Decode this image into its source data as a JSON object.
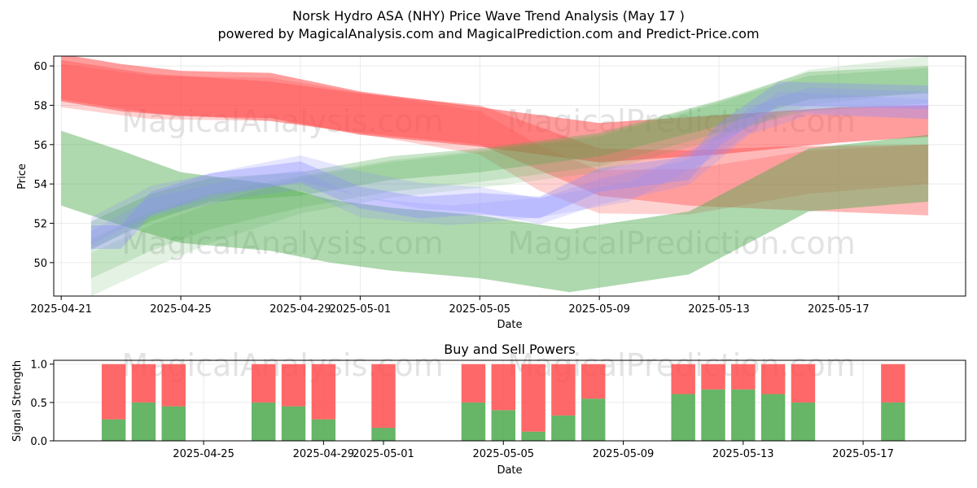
{
  "header": {
    "title": "Norsk Hydro ASA (NHY) Price Wave Trend Analysis (May 17 )",
    "subtitle": "powered by MagicalAnalysis.com and MagicalPrediction.com and Predict-Price.com"
  },
  "watermarks": [
    "MagicalAnalysis.com",
    "MagicalPrediction.com"
  ],
  "colors": {
    "red": "#ff4d4d",
    "green": "#4ca84c",
    "blue": "#8c8cff",
    "grid": "#e6e6e6"
  },
  "chart_data": [
    {
      "type": "area",
      "title": "",
      "xlabel": "Date",
      "ylabel": "Price",
      "x_start": "2025-04-21",
      "x_end": "2025-05-20",
      "xlim": [
        "2025-04-20 18:00",
        "2025-05-21 06:00"
      ],
      "ylim": [
        48.3,
        60.5
      ],
      "xticks": [
        "2025-04-21",
        "2025-04-25",
        "2025-04-29",
        "2025-05-01",
        "2025-05-05",
        "2025-05-09",
        "2025-05-13",
        "2025-05-17"
      ],
      "yticks": [
        50,
        52,
        54,
        56,
        58,
        60
      ],
      "grid": true,
      "bands": [
        {
          "color": "red",
          "x": [
            "2025-04-21",
            "2025-04-23",
            "2025-04-25",
            "2025-04-28",
            "2025-05-01",
            "2025-05-05",
            "2025-05-09",
            "2025-05-13",
            "2025-05-17",
            "2025-05-20"
          ],
          "center": [
            59.4,
            58.9,
            58.6,
            58.5,
            57.6,
            56.9,
            56.1,
            56.5,
            57.0,
            57.2
          ],
          "width": [
            2.4,
            2.4,
            2.3,
            2.3,
            2.2,
            2.0,
            2.0,
            2.0,
            1.8,
            1.6
          ],
          "opacity": 0.55
        },
        {
          "color": "red",
          "x": [
            "2025-04-21",
            "2025-04-24",
            "2025-04-28",
            "2025-05-01",
            "2025-05-05",
            "2025-05-07",
            "2025-05-09",
            "2025-05-12",
            "2025-05-15",
            "2025-05-20"
          ],
          "center": [
            59.3,
            58.6,
            58.2,
            57.6,
            57.0,
            55.8,
            54.6,
            54.3,
            54.3,
            54.2
          ],
          "width": [
            2.0,
            2.0,
            2.0,
            2.0,
            2.0,
            2.2,
            2.4,
            2.8,
            3.2,
            3.6
          ],
          "opacity": 0.4
        },
        {
          "color": "red",
          "x": [
            "2025-04-21",
            "2025-04-24",
            "2025-04-28",
            "2025-05-01",
            "2025-05-05",
            "2025-05-07",
            "2025-05-09",
            "2025-05-12",
            "2025-05-16",
            "2025-05-20"
          ],
          "center": [
            59.0,
            58.4,
            58.3,
            57.6,
            56.6,
            54.8,
            53.6,
            53.6,
            54.6,
            55.0
          ],
          "width": [
            2.2,
            2.2,
            2.2,
            2.1,
            2.2,
            2.3,
            2.2,
            2.3,
            2.2,
            2.0
          ],
          "opacity": 0.25
        },
        {
          "color": "green",
          "x": [
            "2025-04-21",
            "2025-04-23",
            "2025-04-25",
            "2025-04-28",
            "2025-04-30",
            "2025-05-02",
            "2025-05-05",
            "2025-05-08",
            "2025-05-12",
            "2025-05-14",
            "2025-05-16",
            "2025-05-20"
          ],
          "center": [
            54.8,
            53.8,
            52.8,
            52.3,
            51.6,
            51.2,
            50.8,
            50.1,
            51.0,
            52.6,
            54.2,
            54.8
          ],
          "width": [
            3.8,
            3.8,
            3.6,
            3.4,
            3.2,
            3.2,
            3.2,
            3.2,
            3.2,
            3.2,
            3.2,
            3.4
          ],
          "opacity": 0.45
        },
        {
          "color": "green",
          "x": [
            "2025-04-22",
            "2025-04-24",
            "2025-04-26",
            "2025-04-29",
            "2025-05-02",
            "2025-05-05",
            "2025-05-09",
            "2025-05-13",
            "2025-05-16",
            "2025-05-20"
          ],
          "center": [
            51.4,
            52.8,
            53.7,
            54.0,
            54.8,
            55.2,
            56.0,
            57.6,
            59.0,
            59.3
          ],
          "width": [
            1.4,
            1.4,
            1.2,
            1.2,
            1.2,
            1.2,
            1.2,
            1.3,
            1.4,
            1.4
          ],
          "opacity": 0.3
        },
        {
          "color": "green",
          "x": [
            "2025-04-22",
            "2025-04-24",
            "2025-04-26",
            "2025-04-29",
            "2025-05-02",
            "2025-05-05",
            "2025-05-09",
            "2025-05-13",
            "2025-05-16",
            "2025-05-20"
          ],
          "center": [
            50.2,
            51.6,
            52.6,
            53.6,
            54.4,
            54.9,
            55.7,
            57.4,
            58.6,
            59.0
          ],
          "width": [
            2.0,
            2.0,
            1.8,
            1.6,
            1.6,
            1.6,
            1.6,
            1.6,
            1.8,
            1.8
          ],
          "opacity": 0.2
        },
        {
          "color": "green",
          "x": [
            "2025-04-22",
            "2025-04-24",
            "2025-04-26",
            "2025-04-29",
            "2025-05-02",
            "2025-05-05",
            "2025-05-09",
            "2025-05-13",
            "2025-05-16",
            "2025-05-20"
          ],
          "center": [
            49.4,
            50.8,
            52.0,
            53.4,
            54.2,
            54.7,
            55.5,
            57.2,
            58.9,
            59.6
          ],
          "width": [
            2.2,
            2.2,
            2.0,
            1.8,
            1.8,
            1.8,
            1.8,
            1.8,
            1.8,
            1.8
          ],
          "opacity": 0.15
        },
        {
          "color": "blue",
          "x": [
            "2025-04-22",
            "2025-04-23",
            "2025-04-24",
            "2025-04-26",
            "2025-04-29",
            "2025-05-01",
            "2025-05-03",
            "2025-05-05",
            "2025-05-07",
            "2025-05-09",
            "2025-05-12",
            "2025-05-13",
            "2025-05-15",
            "2025-05-20"
          ],
          "center": [
            51.3,
            51.3,
            53.0,
            54.0,
            54.6,
            53.3,
            52.8,
            53.0,
            52.8,
            54.2,
            54.8,
            56.5,
            58.6,
            58.4
          ],
          "width": [
            1.2,
            1.2,
            1.2,
            1.1,
            1.1,
            1.1,
            1.1,
            1.1,
            1.1,
            1.2,
            1.2,
            1.2,
            1.2,
            1.2
          ],
          "opacity": 0.35
        },
        {
          "color": "blue",
          "x": [
            "2025-04-22",
            "2025-04-24",
            "2025-04-27",
            "2025-04-29",
            "2025-05-01",
            "2025-05-03",
            "2025-05-05",
            "2025-05-07",
            "2025-05-09",
            "2025-05-12",
            "2025-05-14",
            "2025-05-16",
            "2025-05-20"
          ],
          "center": [
            51.6,
            53.2,
            54.2,
            54.8,
            54.0,
            53.4,
            53.2,
            52.6,
            53.6,
            54.6,
            57.2,
            58.2,
            58.0
          ],
          "width": [
            1.4,
            1.4,
            1.3,
            1.3,
            1.3,
            1.3,
            1.3,
            1.3,
            1.3,
            1.3,
            1.4,
            1.4,
            1.4
          ],
          "opacity": 0.22
        },
        {
          "color": "blue",
          "x": [
            "2025-04-22",
            "2025-04-24",
            "2025-04-27",
            "2025-04-29",
            "2025-05-01",
            "2025-05-04",
            "2025-05-07",
            "2025-05-10",
            "2025-05-13",
            "2025-05-15",
            "2025-05-20"
          ],
          "center": [
            51.1,
            52.8,
            53.8,
            54.2,
            52.8,
            52.4,
            52.8,
            53.6,
            56.0,
            58.2,
            57.8
          ],
          "width": [
            1.0,
            1.0,
            1.0,
            1.0,
            1.0,
            1.0,
            1.0,
            1.0,
            1.0,
            1.0,
            1.0
          ],
          "opacity": 0.2
        }
      ]
    },
    {
      "type": "bar",
      "title": "Buy and Sell Powers",
      "xlabel": "Date",
      "ylabel": "Signal Strength",
      "ylim": [
        0,
        1.05
      ],
      "yticks": [
        "0.0",
        "0.5",
        "1.0"
      ],
      "xticks": [
        "2025-04-25",
        "2025-04-29",
        "2025-05-01",
        "2025-05-05",
        "2025-05-09",
        "2025-05-13",
        "2025-05-17"
      ],
      "grid": true,
      "categories": [
        "2025-04-22",
        "2025-04-23",
        "2025-04-24",
        "2025-04-27",
        "2025-04-28",
        "2025-04-29",
        "2025-05-01",
        "2025-05-04",
        "2025-05-05",
        "2025-05-06",
        "2025-05-07",
        "2025-05-08",
        "2025-05-11",
        "2025-05-12",
        "2025-05-13",
        "2025-05-14",
        "2025-05-15",
        "2025-05-18"
      ],
      "series": [
        {
          "color": "green",
          "values": [
            0.28,
            0.5,
            0.45,
            0.5,
            0.45,
            0.28,
            0.17,
            0.5,
            0.4,
            0.12,
            0.33,
            0.55,
            0.61,
            0.67,
            0.67,
            0.61,
            0.5,
            0.5
          ]
        },
        {
          "color": "red",
          "values": [
            0.72,
            0.5,
            0.55,
            0.5,
            0.55,
            0.72,
            0.83,
            0.5,
            0.6,
            0.88,
            0.67,
            0.45,
            0.39,
            0.33,
            0.33,
            0.39,
            0.5,
            0.5
          ]
        }
      ]
    }
  ]
}
